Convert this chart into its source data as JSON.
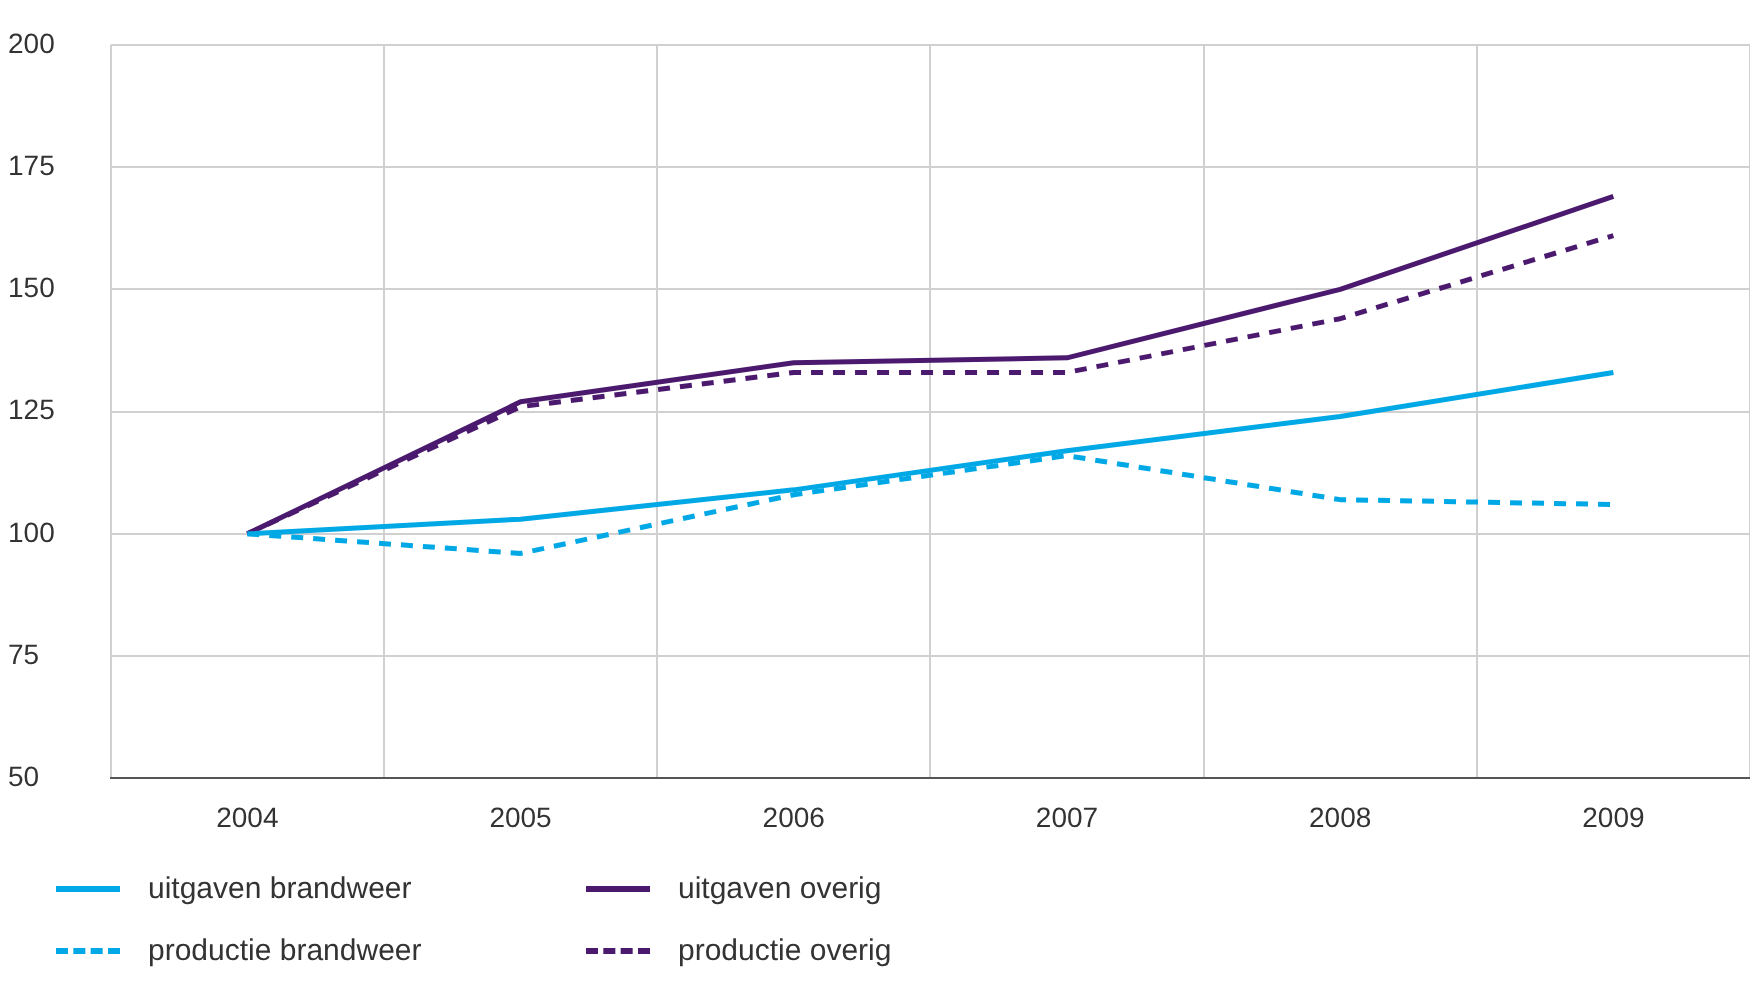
{
  "chart_data": {
    "type": "line",
    "categories": [
      "2004",
      "2005",
      "2006",
      "2007",
      "2008",
      "2009"
    ],
    "series": [
      {
        "name": "uitgaven brandweer",
        "color": "#00a8e6",
        "line_style": "solid",
        "values": [
          100,
          103,
          109,
          117,
          124,
          133
        ]
      },
      {
        "name": "uitgaven overig",
        "color": "#4b1a6e",
        "line_style": "solid",
        "values": [
          100,
          127,
          135,
          136,
          150,
          169
        ]
      },
      {
        "name": "productie brandweer",
        "color": "#00a8e6",
        "line_style": "dashed",
        "values": [
          100,
          96,
          108,
          116,
          107,
          106
        ]
      },
      {
        "name": "productie overig",
        "color": "#4b1a6e",
        "line_style": "dashed",
        "values": [
          100,
          126,
          133,
          133,
          144,
          161
        ]
      }
    ],
    "ylim": [
      50,
      200
    ],
    "yticks": [
      50,
      75,
      100,
      125,
      150,
      175,
      200
    ],
    "grid": true,
    "legend": "bottom",
    "marker": "none"
  }
}
